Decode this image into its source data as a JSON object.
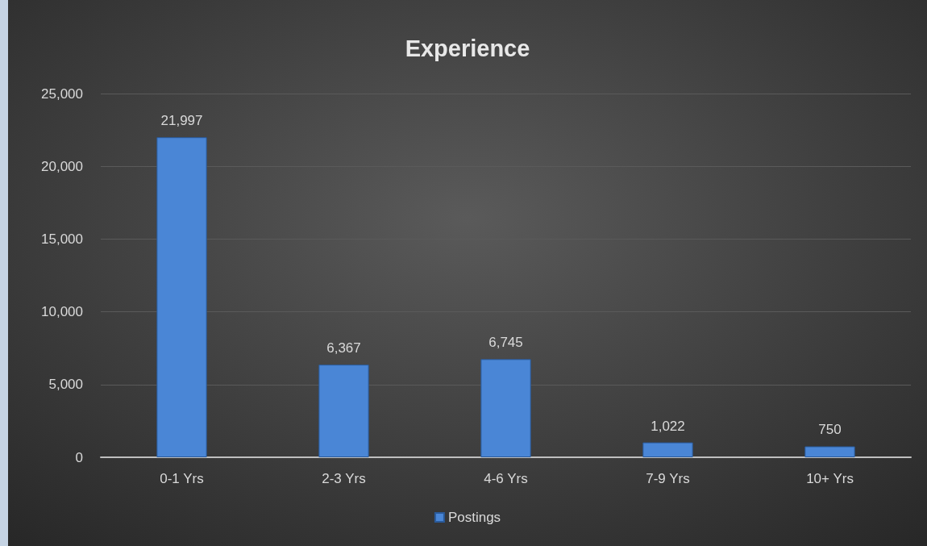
{
  "chart_data": {
    "type": "bar",
    "title": "Experience",
    "categories": [
      "0-1 Yrs",
      "2-3 Yrs",
      "4-6 Yrs",
      "7-9 Yrs",
      "10+ Yrs"
    ],
    "series": [
      {
        "name": "Postings",
        "color": "#4a86d6",
        "values": [
          21997,
          6367,
          6745,
          1022,
          750
        ],
        "value_labels": [
          "21,997",
          "6,367",
          "6,745",
          "1,022",
          "750"
        ]
      }
    ],
    "ylim": [
      0,
      25000
    ],
    "yticks": [
      0,
      {
        "value": 5000,
        "label": "5,000"
      },
      {
        "value": 10000,
        "label": "10,000"
      },
      {
        "value": 15000,
        "label": "15,000"
      },
      {
        "value": 20000,
        "label": "20,000"
      },
      {
        "value": 25000,
        "label": "25,000"
      }
    ],
    "grid": "y",
    "legend": "bottom"
  }
}
